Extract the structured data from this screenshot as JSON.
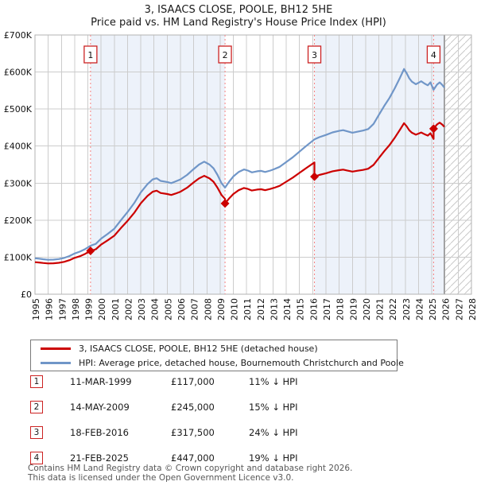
{
  "header": {
    "title": "3, ISAACS CLOSE, POOLE, BH12 5HE",
    "subtitle": "Price paid vs. HM Land Registry's House Price Index (HPI)"
  },
  "colors": {
    "property_line": "#cc0000",
    "hpi_line": "#7096c8",
    "band": "#edf2fa",
    "marker_dashed_line": "#f58080",
    "marker_box_border": "#cc2222",
    "grid": "#cccccc",
    "plot_border": "#b3b3b3",
    "hatch": "#c9c9c9",
    "data_end_line": "#909090",
    "footer_text": "#575757"
  },
  "chart_data": {
    "type": "line",
    "title": "3, ISAACS CLOSE, POOLE, BH12 5HE",
    "subtitle": "Price paid vs. HM Land Registry's House Price Index (HPI)",
    "x_axis": {
      "start_year": 1995,
      "end_year": 2028,
      "tick_years": [
        1995,
        1996,
        1997,
        1998,
        1999,
        2000,
        2001,
        2002,
        2003,
        2004,
        2005,
        2006,
        2007,
        2008,
        2009,
        2010,
        2011,
        2012,
        2013,
        2014,
        2015,
        2016,
        2017,
        2018,
        2019,
        2020,
        2021,
        2022,
        2023,
        2024,
        2025,
        2026,
        2027,
        2028
      ]
    },
    "y_axis": {
      "min": 0,
      "max": 700000,
      "ticks": [
        {
          "value": 0,
          "label": "£0"
        },
        {
          "value": 100000,
          "label": "£100K"
        },
        {
          "value": 200000,
          "label": "£200K"
        },
        {
          "value": 300000,
          "label": "£300K"
        },
        {
          "value": 400000,
          "label": "£400K"
        },
        {
          "value": 500000,
          "label": "£500K"
        },
        {
          "value": 600000,
          "label": "£600K"
        },
        {
          "value": 700000,
          "label": "£700K"
        }
      ]
    },
    "shaded_bands": [
      [
        1999.2,
        2009.37
      ],
      [
        2016.13,
        2025.95
      ]
    ],
    "data_end_year": 2025.95,
    "series": [
      {
        "name": "HPI: Average price, detached house, Bournemouth Christchurch and Poole",
        "color_key": "hpi_line",
        "points": [
          [
            1995.0,
            97000
          ],
          [
            1995.3,
            96000
          ],
          [
            1995.6,
            94500
          ],
          [
            1996.0,
            93000
          ],
          [
            1996.4,
            93500
          ],
          [
            1996.8,
            95000
          ],
          [
            1997.2,
            98000
          ],
          [
            1997.6,
            103000
          ],
          [
            1998.0,
            110000
          ],
          [
            1998.4,
            115000
          ],
          [
            1998.8,
            122000
          ],
          [
            1999.2,
            131000
          ],
          [
            1999.6,
            136000
          ],
          [
            2000.0,
            150000
          ],
          [
            2000.5,
            163000
          ],
          [
            2001.0,
            177000
          ],
          [
            2001.5,
            200000
          ],
          [
            2002.0,
            222000
          ],
          [
            2002.5,
            246000
          ],
          [
            2003.0,
            275000
          ],
          [
            2003.5,
            297000
          ],
          [
            2003.9,
            310000
          ],
          [
            2004.2,
            313000
          ],
          [
            2004.5,
            306000
          ],
          [
            2005.0,
            303000
          ],
          [
            2005.3,
            300000
          ],
          [
            2005.6,
            304000
          ],
          [
            2006.0,
            310000
          ],
          [
            2006.5,
            322000
          ],
          [
            2007.0,
            338000
          ],
          [
            2007.4,
            350000
          ],
          [
            2007.8,
            358000
          ],
          [
            2008.2,
            350000
          ],
          [
            2008.5,
            340000
          ],
          [
            2008.8,
            322000
          ],
          [
            2009.1,
            300000
          ],
          [
            2009.37,
            288000
          ],
          [
            2009.7,
            305000
          ],
          [
            2010.0,
            318000
          ],
          [
            2010.4,
            330000
          ],
          [
            2010.8,
            337000
          ],
          [
            2011.1,
            334000
          ],
          [
            2011.4,
            329000
          ],
          [
            2011.8,
            332000
          ],
          [
            2012.1,
            333000
          ],
          [
            2012.4,
            330000
          ],
          [
            2012.8,
            334000
          ],
          [
            2013.1,
            338000
          ],
          [
            2013.5,
            344000
          ],
          [
            2014.0,
            357000
          ],
          [
            2014.5,
            370000
          ],
          [
            2015.0,
            385000
          ],
          [
            2015.5,
            400000
          ],
          [
            2016.13,
            418000
          ],
          [
            2016.5,
            424000
          ],
          [
            2017.0,
            430000
          ],
          [
            2017.5,
            437000
          ],
          [
            2018.0,
            441000
          ],
          [
            2018.3,
            443000
          ],
          [
            2018.6,
            440000
          ],
          [
            2019.0,
            436000
          ],
          [
            2019.4,
            439000
          ],
          [
            2019.8,
            442000
          ],
          [
            2020.2,
            446000
          ],
          [
            2020.6,
            460000
          ],
          [
            2021.0,
            484000
          ],
          [
            2021.4,
            508000
          ],
          [
            2021.8,
            530000
          ],
          [
            2022.2,
            556000
          ],
          [
            2022.6,
            585000
          ],
          [
            2022.9,
            608000
          ],
          [
            2023.1,
            597000
          ],
          [
            2023.3,
            583000
          ],
          [
            2023.5,
            574000
          ],
          [
            2023.8,
            567000
          ],
          [
            2024.0,
            571000
          ],
          [
            2024.2,
            575000
          ],
          [
            2024.45,
            569000
          ],
          [
            2024.7,
            564000
          ],
          [
            2024.9,
            572000
          ],
          [
            2025.14,
            552000
          ],
          [
            2025.4,
            566000
          ],
          [
            2025.6,
            572000
          ],
          [
            2025.8,
            565000
          ],
          [
            2025.95,
            558000
          ]
        ]
      },
      {
        "name": "3, ISAACS CLOSE, POOLE, BH12 5HE (detached house)",
        "color_key": "property_line",
        "points": [
          [
            1995.0,
            86600
          ],
          [
            1995.3,
            85700
          ],
          [
            1995.6,
            84400
          ],
          [
            1996.0,
            83000
          ],
          [
            1996.4,
            83500
          ],
          [
            1996.8,
            84800
          ],
          [
            1997.2,
            87500
          ],
          [
            1997.6,
            92000
          ],
          [
            1998.0,
            98200
          ],
          [
            1998.4,
            102700
          ],
          [
            1998.8,
            109000
          ],
          [
            1999.2,
            117000
          ],
          [
            1999.6,
            121400
          ],
          [
            2000.0,
            134000
          ],
          [
            2000.5,
            145600
          ],
          [
            2001.0,
            158100
          ],
          [
            2001.5,
            178600
          ],
          [
            2002.0,
            198200
          ],
          [
            2002.5,
            219700
          ],
          [
            2003.0,
            245600
          ],
          [
            2003.5,
            265200
          ],
          [
            2003.9,
            276800
          ],
          [
            2004.2,
            279500
          ],
          [
            2004.5,
            273300
          ],
          [
            2005.0,
            270600
          ],
          [
            2005.3,
            267900
          ],
          [
            2005.6,
            271500
          ],
          [
            2006.0,
            276800
          ],
          [
            2006.5,
            287500
          ],
          [
            2007.0,
            301800
          ],
          [
            2007.4,
            312600
          ],
          [
            2007.8,
            319700
          ],
          [
            2008.2,
            312600
          ],
          [
            2008.5,
            303600
          ],
          [
            2008.8,
            287500
          ],
          [
            2009.1,
            267900
          ],
          [
            2009.37,
            257200
          ],
          [
            2009.37,
            245000
          ],
          [
            2009.7,
            259600
          ],
          [
            2010.0,
            270600
          ],
          [
            2010.4,
            280800
          ],
          [
            2010.8,
            286800
          ],
          [
            2011.1,
            284200
          ],
          [
            2011.4,
            280000
          ],
          [
            2011.8,
            282500
          ],
          [
            2012.1,
            283400
          ],
          [
            2012.4,
            280800
          ],
          [
            2012.8,
            284200
          ],
          [
            2013.1,
            287600
          ],
          [
            2013.5,
            292700
          ],
          [
            2014.0,
            303800
          ],
          [
            2014.5,
            314900
          ],
          [
            2015.0,
            327600
          ],
          [
            2015.5,
            340400
          ],
          [
            2016.13,
            355700
          ],
          [
            2016.13,
            317500
          ],
          [
            2016.5,
            322100
          ],
          [
            2017.0,
            326600
          ],
          [
            2017.5,
            331900
          ],
          [
            2018.0,
            335000
          ],
          [
            2018.3,
            336500
          ],
          [
            2018.6,
            334200
          ],
          [
            2019.0,
            331200
          ],
          [
            2019.4,
            333400
          ],
          [
            2019.8,
            335700
          ],
          [
            2020.2,
            338800
          ],
          [
            2020.6,
            349400
          ],
          [
            2021.0,
            367600
          ],
          [
            2021.4,
            385900
          ],
          [
            2021.8,
            402600
          ],
          [
            2022.2,
            422300
          ],
          [
            2022.6,
            444400
          ],
          [
            2022.9,
            461800
          ],
          [
            2023.1,
            453400
          ],
          [
            2023.3,
            442800
          ],
          [
            2023.5,
            436000
          ],
          [
            2023.8,
            430700
          ],
          [
            2024.0,
            433700
          ],
          [
            2024.2,
            436700
          ],
          [
            2024.45,
            432200
          ],
          [
            2024.7,
            428400
          ],
          [
            2024.9,
            434500
          ],
          [
            2025.14,
            419300
          ],
          [
            2025.14,
            447000
          ],
          [
            2025.4,
            458500
          ],
          [
            2025.6,
            463300
          ],
          [
            2025.8,
            457700
          ],
          [
            2025.95,
            452000
          ]
        ]
      }
    ],
    "sale_markers": [
      {
        "label": "1",
        "year": 1999.2,
        "price": 117000
      },
      {
        "label": "2",
        "year": 2009.37,
        "price": 245000
      },
      {
        "label": "3",
        "year": 2016.13,
        "price": 317500
      },
      {
        "label": "4",
        "year": 2025.14,
        "price": 447000
      }
    ]
  },
  "legend": {
    "items": [
      {
        "label": "3, ISAACS CLOSE, POOLE, BH12 5HE (detached house)",
        "color_key": "property_line"
      },
      {
        "label": "HPI: Average price, detached house, Bournemouth Christchurch and Poole",
        "color_key": "hpi_line"
      }
    ]
  },
  "table": {
    "rows": [
      {
        "num": "1",
        "date": "11-MAR-1999",
        "price": "£117,000",
        "hpi": "11% ↓ HPI"
      },
      {
        "num": "2",
        "date": "14-MAY-2009",
        "price": "£245,000",
        "hpi": "15% ↓ HPI"
      },
      {
        "num": "3",
        "date": "18-FEB-2016",
        "price": "£317,500",
        "hpi": "24% ↓ HPI"
      },
      {
        "num": "4",
        "date": "21-FEB-2025",
        "price": "£447,000",
        "hpi": "19% ↓ HPI"
      }
    ]
  },
  "footer": {
    "line1": "Contains HM Land Registry data © Crown copyright and database right 2026.",
    "line2": "This data is licensed under the Open Government Licence v3.0."
  }
}
